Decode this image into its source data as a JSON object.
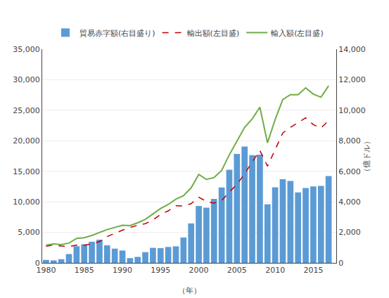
{
  "chart_data": {
    "type": "bar",
    "x": [
      1980,
      1981,
      1982,
      1983,
      1984,
      1985,
      1986,
      1987,
      1988,
      1989,
      1990,
      1991,
      1992,
      1993,
      1994,
      1995,
      1996,
      1997,
      1998,
      1999,
      2000,
      2001,
      2002,
      2003,
      2004,
      2005,
      2006,
      2007,
      2008,
      2009,
      2010,
      2011,
      2012,
      2013,
      2014,
      2015,
      2016,
      2017
    ],
    "xlabel": "（年）",
    "y2label": "（億ドル）",
    "xlim": [
      1979.5,
      2018
    ],
    "xticks": [
      1980,
      1985,
      1990,
      1995,
      2000,
      2005,
      2010,
      2015
    ],
    "ylim": [
      0,
      35000
    ],
    "yticks": [
      0,
      {
        "value": 5000,
        "label": "5,000"
      },
      {
        "value": 10000,
        "label": "10,000"
      },
      {
        "value": 15000,
        "label": "15,000"
      },
      {
        "value": 20000,
        "label": "20,000"
      },
      {
        "value": 25000,
        "label": "25,000"
      },
      {
        "value": 30000,
        "label": "30,000"
      },
      {
        "value": 35000,
        "label": "35,000"
      }
    ],
    "y2lim": [
      0,
      14000
    ],
    "y2ticks": [
      0,
      {
        "value": 2000,
        "label": "2,000"
      },
      {
        "value": 4000,
        "label": "4,000"
      },
      {
        "value": 6000,
        "label": "6,000"
      },
      {
        "value": 8000,
        "label": "8,000"
      },
      {
        "value": 10000,
        "label": "10,000"
      },
      {
        "value": 12000,
        "label": "12,000"
      },
      {
        "value": 14000,
        "label": "14,000"
      }
    ],
    "grid": true,
    "legend": "top",
    "series": [
      {
        "name": "貿易赤字額(右目盛り)",
        "type": "bar",
        "axis": "y2",
        "color": "#5B9BD5",
        "values": [
          194,
          162,
          242,
          578,
          1091,
          1219,
          1385,
          1517,
          1146,
          931,
          809,
          311,
          392,
          703,
          985,
          964,
          1041,
          1083,
          1661,
          2586,
          3725,
          3615,
          4190,
          4939,
          6099,
          7142,
          7617,
          7054,
          7087,
          3838,
          4947,
          5486,
          5368,
          4619,
          4903,
          5004,
          5048,
          5684
        ]
      },
      {
        "name": "輸出額(左目盛)",
        "type": "line",
        "line_style": "dashed",
        "color": "#C00000",
        "values": [
          2718,
          2944,
          2752,
          2661,
          2911,
          2891,
          3100,
          3489,
          4312,
          4870,
          5352,
          5783,
          6169,
          6429,
          7033,
          7944,
          8516,
          9345,
          9332,
          9699,
          10753,
          10057,
          9787,
          10204,
          11615,
          12860,
          14576,
          16535,
          18416,
          15831,
          18536,
          21270,
          22190,
          22935,
          23759,
          22639,
          22081,
          23316
        ]
      },
      {
        "name": "輸入額(左目盛)",
        "type": "line",
        "line_style": "solid",
        "color": "#70AD47",
        "values": [
          2912,
          3106,
          2994,
          3239,
          4002,
          4110,
          4486,
          5006,
          5457,
          5801,
          6161,
          6095,
          6561,
          7132,
          8017,
          8908,
          9557,
          10427,
          10993,
          12285,
          14478,
          13672,
          13977,
          15143,
          17714,
          20003,
          22194,
          23589,
          25503,
          19668,
          23483,
          26756,
          27558,
          27553,
          28662,
          27644,
          27129,
          29000
        ]
      }
    ]
  }
}
